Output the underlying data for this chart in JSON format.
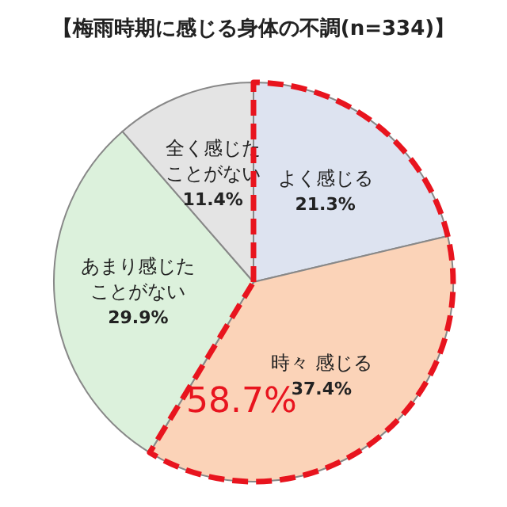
{
  "chart_data": {
    "type": "pie",
    "title": "【梅雨時期に感じる身体の不調(n=334)】",
    "categories": [
      "よく感じる",
      "時々 感じる",
      "あまり感じたことがない",
      "全く感じたことがない"
    ],
    "values": [
      21.3,
      37.4,
      29.9,
      11.4
    ],
    "colors": [
      "#dde3f0",
      "#fbd3b8",
      "#dcf1dc",
      "#e4e4e4"
    ],
    "value_labels": [
      "21.3%",
      "37.4%",
      "29.9%",
      "11.4%"
    ],
    "annotations": [
      "58.7%"
    ]
  }
}
